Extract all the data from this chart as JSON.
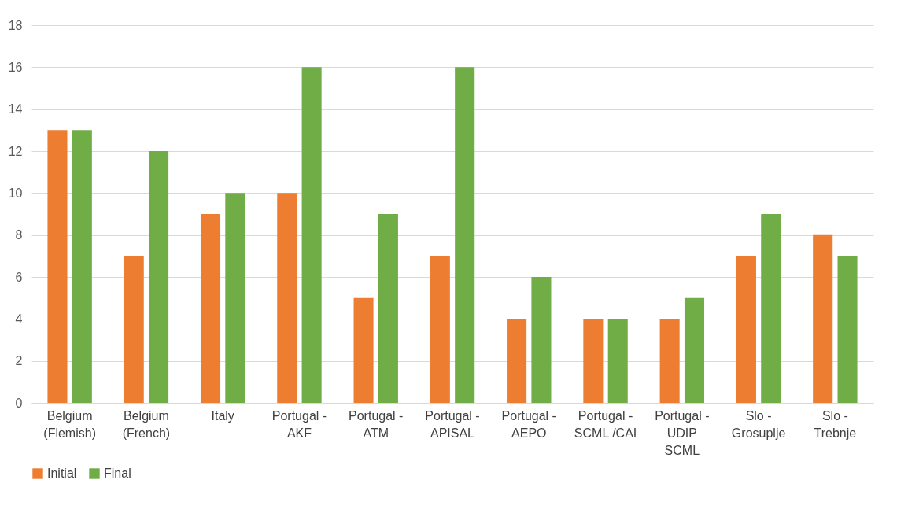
{
  "chart_data": {
    "type": "bar",
    "categories": [
      "Belgium (Flemish)",
      "Belgium (French)",
      "Italy",
      "Portugal - AKF",
      "Portugal - ATM",
      "Portugal - APISAL",
      "Portugal - AEPO",
      "Portugal - SCML /CAI",
      "Portugal - UDIP SCML",
      "Slo - Grosuplje",
      "Slo - Trebnje"
    ],
    "series": [
      {
        "name": "Initial",
        "color": "#ed7d31",
        "values": [
          13,
          7,
          9,
          10,
          5,
          7,
          4,
          4,
          4,
          7,
          8
        ]
      },
      {
        "name": "Final",
        "color": "#70ad47",
        "values": [
          13,
          12,
          10,
          16,
          9,
          16,
          6,
          4,
          5,
          9,
          7
        ]
      }
    ],
    "ylim": [
      0,
      18
    ],
    "yticks": [
      0,
      2,
      4,
      6,
      8,
      10,
      12,
      14,
      16,
      18
    ],
    "grid": "y",
    "legend": "bottom"
  }
}
